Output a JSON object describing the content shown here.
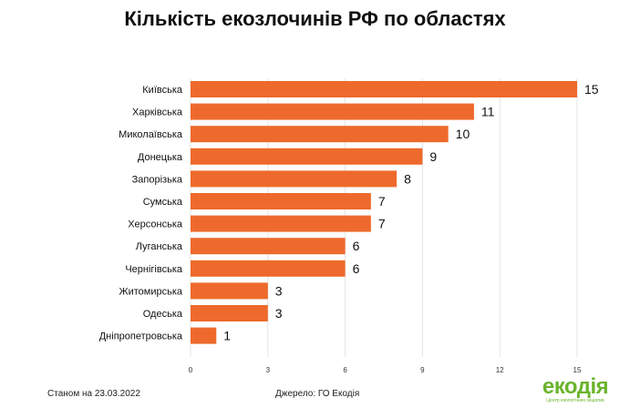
{
  "title": "Кількість екозлочинів РФ по областях",
  "chart_data": {
    "type": "bar",
    "orientation": "horizontal",
    "categories": [
      "Київська",
      "Харківська",
      "Миколаївська",
      "Донецька",
      "Запорізька",
      "Сумська",
      "Херсонська",
      "Луганська",
      "Чернігівська",
      "Житомирська",
      "Одеська",
      "Дніпропетровська"
    ],
    "values": [
      15,
      11,
      10,
      9,
      8,
      7,
      7,
      6,
      6,
      3,
      3,
      1
    ],
    "xlim": [
      0,
      15
    ],
    "xticks": [
      0,
      3,
      6,
      9,
      12,
      15
    ],
    "grid": true,
    "bar_color": "#ee6a2c"
  },
  "footer": {
    "date_note": "Станом на 23.03.2022",
    "source_note": "Джерело: ГО Екодія"
  },
  "logo": {
    "name": "екодія",
    "tagline": "Центр екологічних ініціатив",
    "color": "#6ab42d"
  }
}
